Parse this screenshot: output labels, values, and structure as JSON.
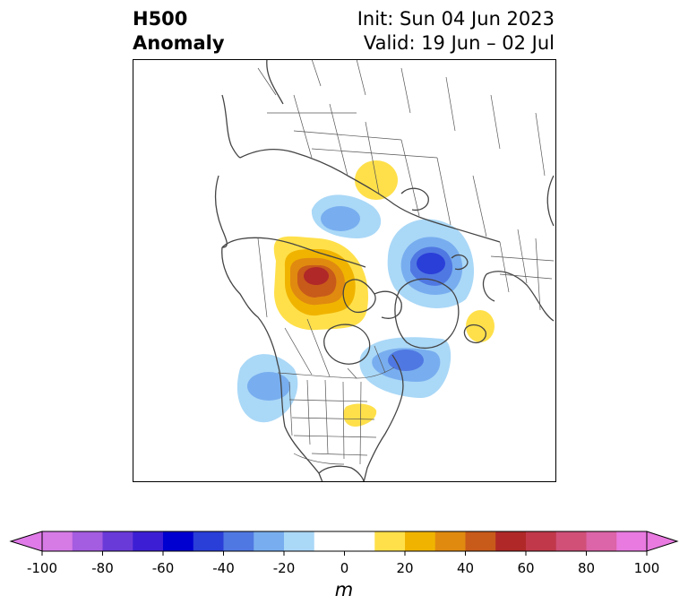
{
  "header": {
    "title_line1": "H500",
    "title_line2": "Anomaly",
    "init_label": "Init: Sun 04 Jun 2023",
    "valid_label": "Valid: 19 Jun – 02 Jul"
  },
  "map": {
    "projection": "polar-stereographic",
    "region": "North America / Arctic",
    "land_outline_color": "#444444",
    "ocean_color": "#ffffff"
  },
  "colorbar": {
    "unit": "m",
    "levels": [
      -100,
      -90,
      -80,
      -70,
      -60,
      -50,
      -40,
      -30,
      -20,
      -10,
      10,
      20,
      30,
      40,
      50,
      60,
      70,
      80,
      90,
      100
    ],
    "tick_labels": [
      "-100",
      "-80",
      "-60",
      "-40",
      "-20",
      "0",
      "20",
      "40",
      "60",
      "80",
      "100"
    ],
    "under_color": "#e07ae8",
    "over_color": "#e87ae0",
    "colors": [
      "#d67ae6",
      "#a45ce0",
      "#6a3ad8",
      "#3c1fd4",
      "#0000d0",
      "#2a3ed8",
      "#5078e2",
      "#78aeef",
      "#aad8f7",
      "#ffffff",
      "#ffffff",
      "#ffe04a",
      "#f0b400",
      "#e08a10",
      "#c85a1a",
      "#b02828",
      "#c0384a",
      "#d05078",
      "#dc64a8",
      "#e87ae0"
    ]
  },
  "anomalies": [
    {
      "name": "ridge-alaska-yukon",
      "value_m": 70,
      "sign": "positive"
    },
    {
      "name": "trough-north-greenland-sea",
      "value_m": -60,
      "sign": "negative"
    },
    {
      "name": "ridge-kara-sea",
      "value_m": 20,
      "sign": "positive"
    },
    {
      "name": "trough-east-siberian-sea",
      "value_m": -30,
      "sign": "negative"
    },
    {
      "name": "trough-eastern-canada",
      "value_m": -40,
      "sign": "negative"
    },
    {
      "name": "trough-pacific-northwest",
      "value_m": -40,
      "sign": "negative"
    },
    {
      "name": "ridge-ohio-valley",
      "value_m": 20,
      "sign": "positive"
    },
    {
      "name": "ridge-north-atlantic",
      "value_m": 20,
      "sign": "positive"
    }
  ]
}
